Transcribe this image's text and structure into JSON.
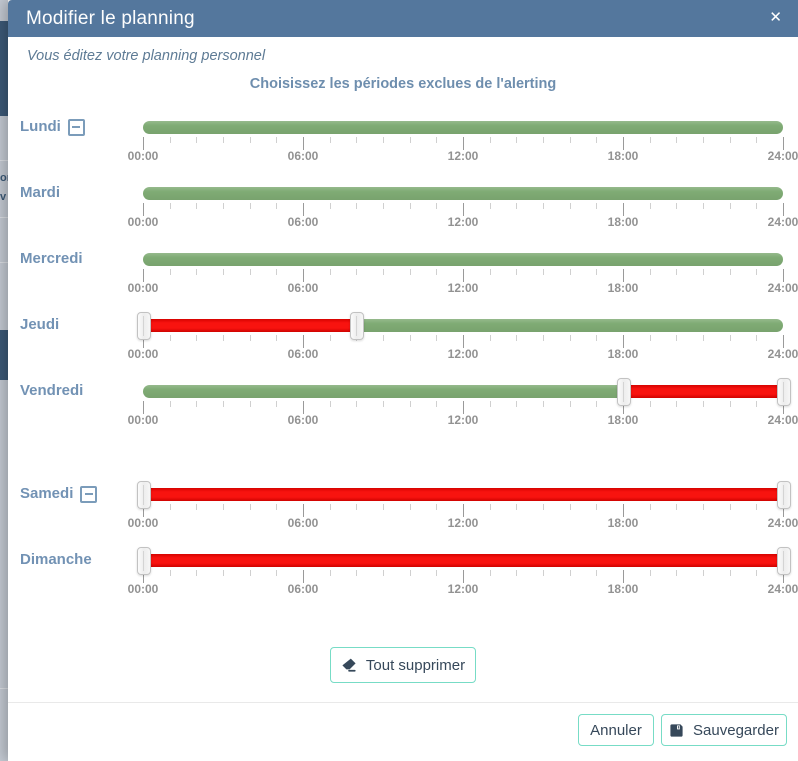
{
  "background": {
    "fragments": [
      "on",
      "v"
    ]
  },
  "modal": {
    "title": "Modifier le planning",
    "close_icon": "✕",
    "subtitle": "Vous éditez votre planning personnel",
    "heading": "Choisissez les périodes exclues de l'alerting"
  },
  "slider": {
    "hours_start": 0,
    "hours_end": 24,
    "major_tick_every": 6,
    "major_labels": [
      "00:00",
      "06:00",
      "12:00",
      "18:00",
      "24:00"
    ]
  },
  "days": [
    {
      "label": "Lundi",
      "collapse_icon": true,
      "segments": [
        {
          "from": 0,
          "to": 24,
          "state": "included"
        }
      ],
      "handles": []
    },
    {
      "label": "Mardi",
      "collapse_icon": false,
      "segments": [
        {
          "from": 0,
          "to": 24,
          "state": "included"
        }
      ],
      "handles": []
    },
    {
      "label": "Mercredi",
      "collapse_icon": false,
      "segments": [
        {
          "from": 0,
          "to": 24,
          "state": "included"
        }
      ],
      "handles": []
    },
    {
      "label": "Jeudi",
      "collapse_icon": false,
      "segments": [
        {
          "from": 0,
          "to": 8,
          "state": "excluded"
        },
        {
          "from": 8,
          "to": 24,
          "state": "included"
        }
      ],
      "handles": [
        0,
        8
      ]
    },
    {
      "label": "Vendredi",
      "collapse_icon": false,
      "segments": [
        {
          "from": 0,
          "to": 18,
          "state": "included"
        },
        {
          "from": 18,
          "to": 24,
          "state": "excluded"
        }
      ],
      "handles": [
        18,
        24
      ]
    },
    {
      "label": "Samedi",
      "collapse_icon": true,
      "segments": [
        {
          "from": 0,
          "to": 24,
          "state": "excluded"
        }
      ],
      "handles": [
        0,
        24
      ]
    },
    {
      "label": "Dimanche",
      "collapse_icon": false,
      "segments": [
        {
          "from": 0,
          "to": 24,
          "state": "excluded"
        }
      ],
      "handles": [
        0,
        24
      ]
    }
  ],
  "buttons": {
    "clear_all": "Tout supprimer",
    "cancel": "Annuler",
    "save": "Sauvegarder"
  },
  "colors": {
    "header_bg": "#54779d",
    "heading_text": "#6e8eae",
    "day_label": "#7292b4",
    "included_green": "#7fab74",
    "excluded_red": "#f80400",
    "button_border": "#77dcc6",
    "button_text": "#36485a"
  }
}
